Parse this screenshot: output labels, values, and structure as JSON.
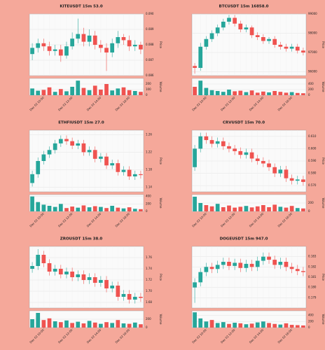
{
  "chart_data": [
    {
      "type": "candlestick",
      "title": "KITEUSDT 15m 53.0",
      "ylabel": "Price",
      "y2label": "Volume",
      "up_color": "#26a69a",
      "down_color": "#ef5350",
      "grid": true,
      "categories": [
        null,
        null,
        "Dec 02 10:00",
        null,
        null,
        null,
        null,
        "Dec 02 12:00",
        null,
        null,
        null,
        null,
        "Dec 02 14:00",
        null,
        null,
        null,
        null,
        "Dec 02 16:00",
        null,
        null
      ],
      "open": [
        0.0874,
        0.0878,
        0.0881,
        0.0879,
        0.0876,
        0.0877,
        0.0873,
        0.0879,
        0.0884,
        0.0887,
        0.0882,
        0.0886,
        0.088,
        0.0878,
        0.0875,
        0.0881,
        0.0885,
        0.0883,
        0.0879,
        0.088
      ],
      "high": [
        0.0881,
        0.0884,
        0.0884,
        0.0882,
        0.088,
        0.088,
        0.0882,
        0.0888,
        0.0897,
        0.0891,
        0.089,
        0.0889,
        0.0883,
        0.0881,
        0.0884,
        0.0889,
        0.0887,
        0.0886,
        0.0883,
        0.0882
      ],
      "low": [
        0.087,
        0.0875,
        0.0876,
        0.0873,
        0.0873,
        0.0869,
        0.0871,
        0.0877,
        0.0881,
        0.0879,
        0.0879,
        0.0877,
        0.0875,
        0.0863,
        0.0872,
        0.0878,
        0.088,
        0.0876,
        0.0876,
        0.0874
      ],
      "close": [
        0.0878,
        0.0881,
        0.0879,
        0.0876,
        0.0877,
        0.0873,
        0.0879,
        0.0884,
        0.0887,
        0.0882,
        0.0886,
        0.088,
        0.0878,
        0.0875,
        0.0881,
        0.0885,
        0.0883,
        0.0879,
        0.088,
        0.0877
      ],
      "volume": [
        120,
        80,
        95,
        140,
        60,
        110,
        70,
        150,
        260,
        130,
        90,
        170,
        100,
        200,
        85,
        120,
        140,
        90,
        75,
        60
      ],
      "ylim": [
        0.086,
        0.09
      ],
      "yticks": [
        0.086,
        0.087,
        0.088,
        0.089,
        {
          "value": 0.09,
          "label": "0.090"
        }
      ],
      "vlim": [
        0,
        300
      ],
      "vticks": [
        0,
        100,
        200
      ]
    },
    {
      "type": "candlestick",
      "title": "BTCUSDT 15m 16858.0",
      "ylabel": "Price",
      "y2label": "Volume",
      "up_color": "#26a69a",
      "down_color": "#ef5350",
      "grid": true,
      "categories": [
        null,
        null,
        "Dec 02 10:00",
        null,
        null,
        null,
        null,
        "Dec 02 12:00",
        null,
        null,
        null,
        null,
        "Dec 02 14:00",
        null,
        null,
        null,
        null,
        "Dec 02 16:00",
        null,
        null
      ],
      "open": [
        96300,
        96200,
        97300,
        97700,
        98000,
        98300,
        98600,
        98800,
        98500,
        98200,
        98300,
        97900,
        97800,
        97600,
        97700,
        97400,
        97300,
        97200,
        97300,
        97100
      ],
      "high": [
        96450,
        97500,
        97850,
        98150,
        98450,
        98750,
        98950,
        98950,
        98650,
        98450,
        98400,
        98050,
        97950,
        97800,
        97850,
        97550,
        97450,
        97450,
        97450,
        97250
      ],
      "low": [
        95900,
        96050,
        97150,
        97550,
        97850,
        98150,
        98450,
        98350,
        98050,
        98050,
        97750,
        97650,
        97450,
        97450,
        97250,
        97150,
        97050,
        97050,
        96950,
        96850
      ],
      "close": [
        96200,
        97300,
        97700,
        98000,
        98300,
        98600,
        98800,
        98500,
        98200,
        98300,
        97900,
        97800,
        97600,
        97700,
        97400,
        97300,
        97200,
        97300,
        97100,
        97000
      ],
      "volume": [
        300,
        520,
        260,
        180,
        150,
        120,
        200,
        140,
        160,
        110,
        170,
        90,
        130,
        100,
        150,
        120,
        90,
        110,
        80,
        70
      ],
      "ylim": [
        95800,
        99000
      ],
      "yticks": [
        96000,
        97000,
        98000,
        99000
      ],
      "vlim": [
        0,
        600
      ],
      "vticks": [
        0,
        200,
        400
      ]
    },
    {
      "type": "candlestick",
      "title": "ETHFIUSDT 15m 27.0",
      "ylabel": "Price",
      "y2label": "Volume",
      "up_color": "#26a69a",
      "down_color": "#ef5350",
      "grid": true,
      "categories": [
        null,
        null,
        "Dec 02 10:00",
        null,
        null,
        null,
        null,
        "Dec 02 12:00",
        null,
        null,
        null,
        null,
        "Dec 02 14:00",
        null,
        null,
        null,
        null,
        "Dec 02 16:00",
        null,
        null
      ],
      "open": [
        1.15,
        1.17,
        1.2,
        1.215,
        1.225,
        1.24,
        1.25,
        1.245,
        1.235,
        1.24,
        1.22,
        1.225,
        1.205,
        1.21,
        1.19,
        1.195,
        1.175,
        1.18,
        1.165,
        1.17
      ],
      "high": [
        1.178,
        1.208,
        1.223,
        1.233,
        1.248,
        1.258,
        1.258,
        1.253,
        1.248,
        1.248,
        1.233,
        1.233,
        1.218,
        1.218,
        1.203,
        1.203,
        1.188,
        1.188,
        1.178,
        1.178
      ],
      "low": [
        1.142,
        1.162,
        1.192,
        1.207,
        1.217,
        1.232,
        1.237,
        1.227,
        1.227,
        1.212,
        1.212,
        1.197,
        1.197,
        1.182,
        1.182,
        1.167,
        1.167,
        1.157,
        1.157,
        1.16
      ],
      "close": [
        1.17,
        1.2,
        1.215,
        1.225,
        1.24,
        1.25,
        1.245,
        1.235,
        1.24,
        1.22,
        1.225,
        1.205,
        1.21,
        1.19,
        1.195,
        1.175,
        1.18,
        1.165,
        1.17,
        1.168
      ],
      "volume": [
        400,
        250,
        180,
        150,
        120,
        200,
        90,
        130,
        100,
        160,
        110,
        140,
        120,
        90,
        150,
        100,
        80,
        110,
        70,
        60
      ],
      "ylim": [
        1.13,
        1.27
      ],
      "yticks": [
        1.14,
        1.18,
        1.22,
        1.26
      ],
      "vlim": [
        0,
        450
      ],
      "vticks": [
        0,
        200,
        400
      ]
    },
    {
      "type": "candlestick",
      "title": "CRVUSDT 15m 70.0",
      "ylabel": "Price",
      "y2label": "Volume",
      "up_color": "#26a69a",
      "down_color": "#ef5350",
      "grid": true,
      "categories": [
        null,
        null,
        "Dec 02 10:00",
        null,
        null,
        null,
        null,
        "Dec 02 12:00",
        null,
        null,
        null,
        null,
        "Dec 02 14:00",
        null,
        null,
        null,
        null,
        "Dec 02 16:00",
        null,
        null
      ],
      "open": [
        0.585,
        0.6,
        0.61,
        0.607,
        0.604,
        0.606,
        0.602,
        0.6,
        0.598,
        0.595,
        0.597,
        0.592,
        0.59,
        0.588,
        0.585,
        0.58,
        0.583,
        0.576,
        0.574,
        0.575
      ],
      "high": [
        0.603,
        0.613,
        0.613,
        0.61,
        0.609,
        0.609,
        0.605,
        0.603,
        0.601,
        0.6,
        0.6,
        0.595,
        0.593,
        0.591,
        0.588,
        0.586,
        0.586,
        0.579,
        0.578,
        0.578
      ],
      "low": [
        0.582,
        0.597,
        0.604,
        0.601,
        0.601,
        0.599,
        0.597,
        0.595,
        0.592,
        0.592,
        0.589,
        0.587,
        0.585,
        0.582,
        0.577,
        0.577,
        0.573,
        0.571,
        0.571,
        0.57
      ],
      "close": [
        0.6,
        0.61,
        0.607,
        0.604,
        0.606,
        0.602,
        0.6,
        0.598,
        0.595,
        0.597,
        0.592,
        0.59,
        0.588,
        0.585,
        0.58,
        0.583,
        0.576,
        0.574,
        0.575,
        0.573
      ],
      "volume": [
        350,
        200,
        150,
        120,
        180,
        100,
        140,
        90,
        110,
        130,
        95,
        120,
        150,
        100,
        160,
        110,
        90,
        130,
        80,
        70
      ],
      "ylim": [
        0.565,
        0.615
      ],
      "yticks": [
        {
          "value": 0.57,
          "label": "0.570"
        },
        {
          "value": 0.58,
          "label": "0.580"
        },
        {
          "value": 0.59,
          "label": "0.590"
        },
        {
          "value": 0.6,
          "label": "0.600"
        },
        {
          "value": 0.61,
          "label": "0.610"
        }
      ],
      "vlim": [
        0,
        400
      ],
      "vticks": [
        0,
        200
      ]
    },
    {
      "type": "candlestick",
      "title": "ZROUSDT 15m 38.0",
      "ylabel": "Price",
      "y2label": "Volume",
      "up_color": "#26a69a",
      "down_color": "#ef5350",
      "grid": true,
      "categories": [
        null,
        null,
        "Dec 02 10:00",
        null,
        null,
        null,
        null,
        "Dec 02 12:00",
        null,
        null,
        null,
        null,
        "Dec 02 14:00",
        null,
        null,
        null,
        null,
        "Dec 02 16:00",
        null,
        null
      ],
      "open": [
        1.74,
        1.745,
        1.765,
        1.75,
        1.735,
        1.74,
        1.73,
        1.735,
        1.725,
        1.73,
        1.72,
        1.725,
        1.715,
        1.72,
        1.705,
        1.71,
        1.69,
        1.695,
        1.685,
        1.69
      ],
      "high": [
        1.752,
        1.775,
        1.772,
        1.757,
        1.747,
        1.747,
        1.742,
        1.742,
        1.737,
        1.737,
        1.732,
        1.732,
        1.727,
        1.727,
        1.717,
        1.717,
        1.702,
        1.702,
        1.697,
        1.697
      ],
      "low": [
        1.733,
        1.738,
        1.743,
        1.728,
        1.728,
        1.723,
        1.723,
        1.718,
        1.718,
        1.713,
        1.713,
        1.708,
        1.708,
        1.698,
        1.698,
        1.683,
        1.683,
        1.678,
        1.678,
        1.681
      ],
      "close": [
        1.745,
        1.765,
        1.75,
        1.735,
        1.74,
        1.73,
        1.735,
        1.725,
        1.73,
        1.72,
        1.725,
        1.715,
        1.72,
        1.705,
        1.71,
        1.69,
        1.695,
        1.685,
        1.69,
        1.688
      ],
      "volume": [
        200,
        350,
        180,
        220,
        150,
        130,
        170,
        110,
        140,
        100,
        160,
        120,
        90,
        130,
        110,
        180,
        100,
        90,
        120,
        80
      ],
      "ylim": [
        1.67,
        1.78
      ],
      "yticks": [
        1.68,
        {
          "value": 1.7,
          "label": "1.70"
        },
        1.72,
        1.74,
        1.76
      ],
      "vlim": [
        0,
        400
      ],
      "vticks": [
        0,
        200
      ]
    },
    {
      "type": "candlestick",
      "title": "DOGEUSDT 15m 947.0",
      "ylabel": "Price",
      "y2label": "Volume",
      "up_color": "#26a69a",
      "down_color": "#ef5350",
      "grid": true,
      "categories": [
        null,
        null,
        "Dec 02 10:00",
        null,
        null,
        null,
        null,
        "Dec 02 12:00",
        null,
        null,
        null,
        null,
        "Dec 02 14:00",
        null,
        null,
        null,
        null,
        "Dec 02 16:00",
        null,
        null
      ],
      "open": [
        0.18,
        0.1805,
        0.1815,
        0.182,
        0.1818,
        0.1822,
        0.1825,
        0.1821,
        0.1824,
        0.1819,
        0.1823,
        0.182,
        0.1826,
        0.183,
        0.1827,
        0.1822,
        0.1825,
        0.182,
        0.1818,
        0.1816
      ],
      "high": [
        0.1809,
        0.1819,
        0.1824,
        0.1824,
        0.1826,
        0.1829,
        0.1829,
        0.1828,
        0.1828,
        0.1827,
        0.1827,
        0.183,
        0.1834,
        0.1834,
        0.1831,
        0.1829,
        0.1829,
        0.1824,
        0.1822,
        0.182
      ],
      "low": [
        0.1785,
        0.1801,
        0.1811,
        0.1814,
        0.1814,
        0.1818,
        0.1817,
        0.1817,
        0.1815,
        0.1815,
        0.1816,
        0.1816,
        0.1822,
        0.1823,
        0.1818,
        0.1818,
        0.1816,
        0.1814,
        0.1812,
        0.1811
      ],
      "close": [
        0.1805,
        0.1815,
        0.182,
        0.1818,
        0.1822,
        0.1825,
        0.1821,
        0.1824,
        0.1819,
        0.1823,
        0.182,
        0.1826,
        0.183,
        0.1827,
        0.1822,
        0.1825,
        0.182,
        0.1818,
        0.1816,
        0.1815
      ],
      "volume": [
        500,
        300,
        200,
        250,
        150,
        180,
        120,
        160,
        140,
        110,
        130,
        170,
        200,
        150,
        120,
        100,
        140,
        90,
        80,
        70
      ],
      "ylim": [
        0.178,
        0.184
      ],
      "yticks": [
        0.179,
        {
          "value": 0.18,
          "label": "0.180"
        },
        0.181,
        0.182,
        0.183
      ],
      "vlim": [
        0,
        550
      ],
      "vticks": [
        0,
        200,
        400
      ]
    }
  ]
}
